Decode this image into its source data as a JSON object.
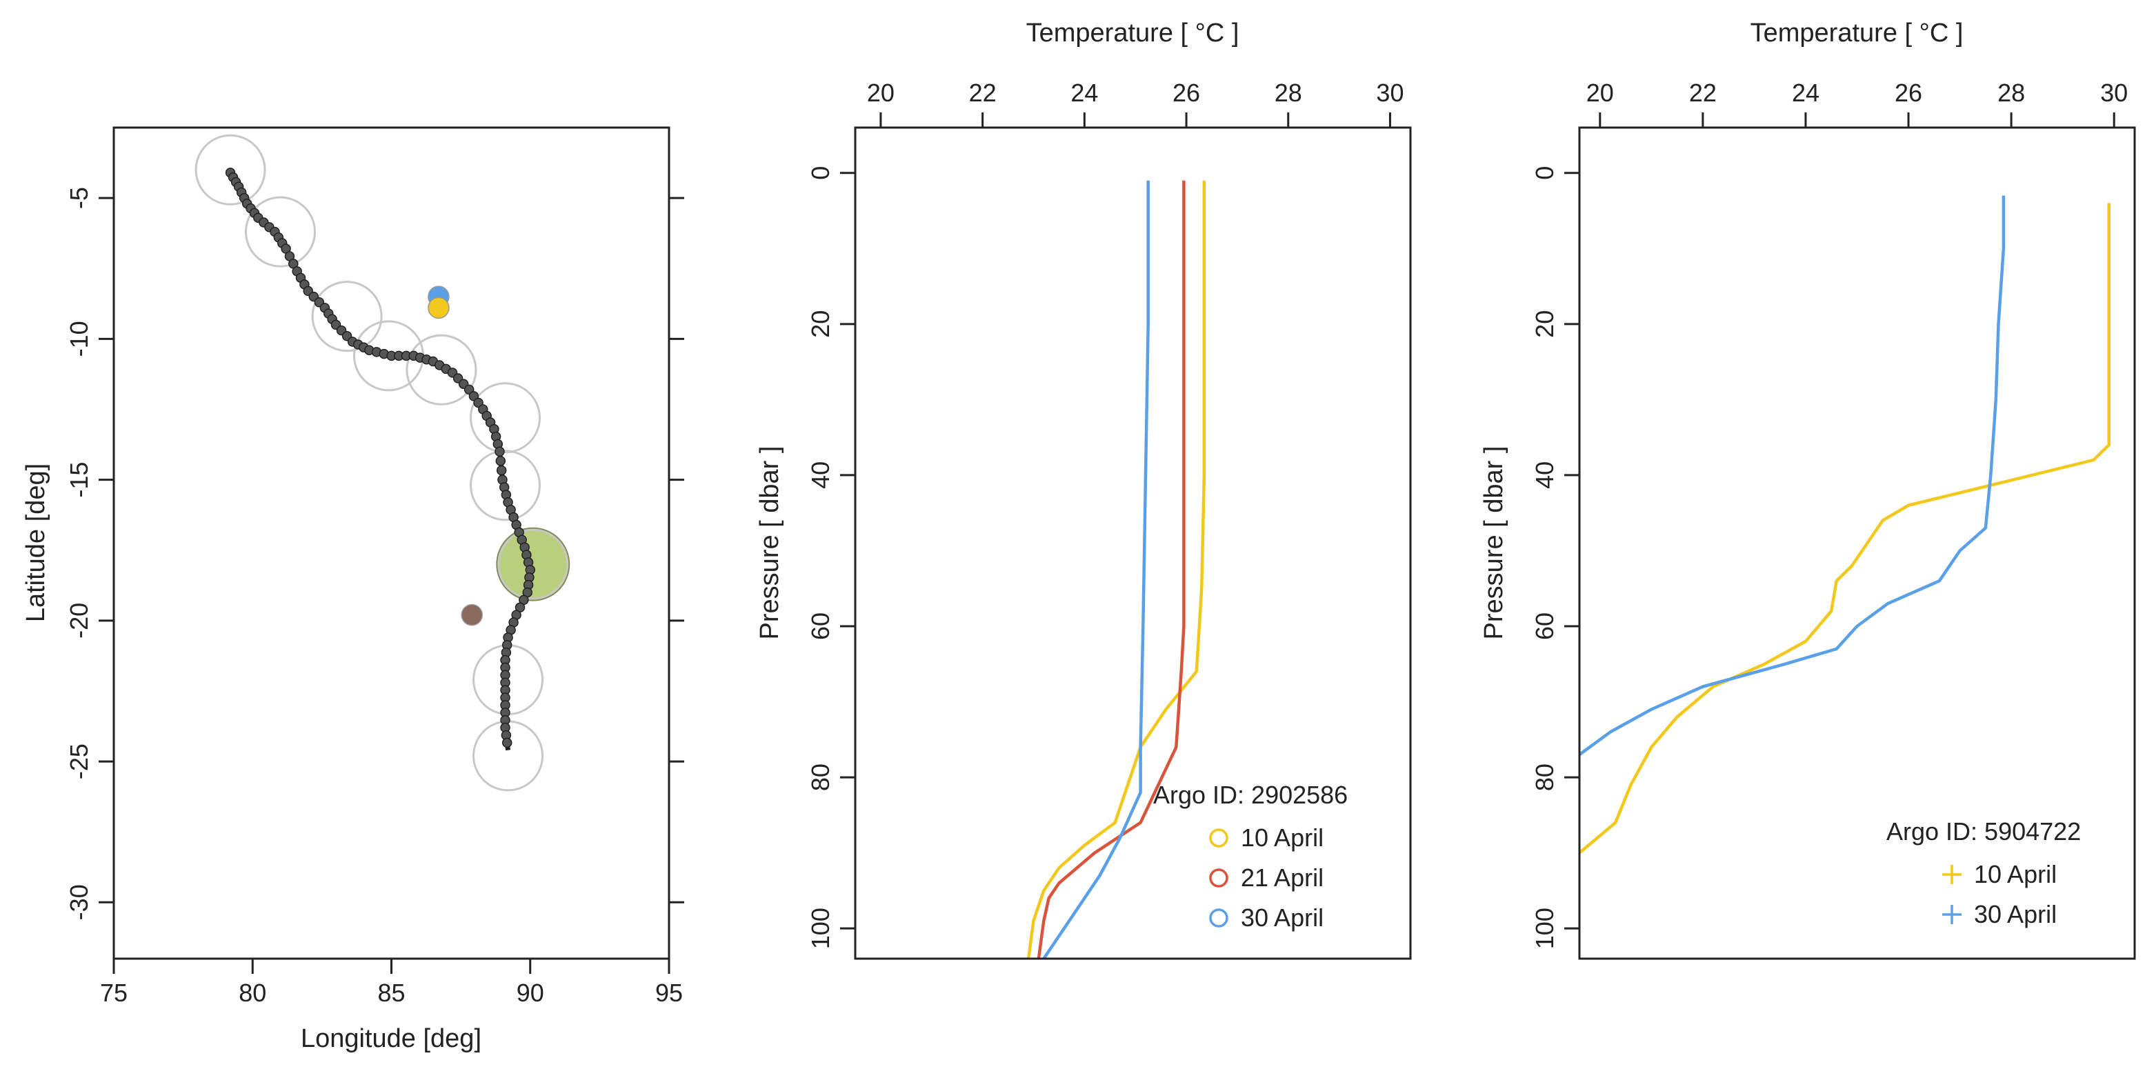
{
  "colors": {
    "yellow": "#f2c81c",
    "red": "#d9543a",
    "blue": "#5aa0e8",
    "track_line": "#222222",
    "track_marker": "#555555",
    "circle_outline": "#c8c8c8",
    "highlight_fill": "#b9cf7d",
    "brown_marker": "#8b6a5e"
  },
  "chart_data": [
    {
      "type": "scatter",
      "xlabel": "Longitude [deg]",
      "ylabel": "Latitude [deg]",
      "xlim": [
        75,
        95
      ],
      "ylim": [
        -32,
        -2.5
      ],
      "xticks": [
        75,
        80,
        85,
        90,
        95
      ],
      "yticks": [
        -5,
        -10,
        -15,
        -20,
        -25,
        -30
      ],
      "grid": false,
      "track": [
        [
          79.2,
          -4.1
        ],
        [
          79.5,
          -4.6
        ],
        [
          79.8,
          -5.2
        ],
        [
          80.2,
          -5.7
        ],
        [
          80.8,
          -6.2
        ],
        [
          81.2,
          -6.8
        ],
        [
          81.6,
          -7.6
        ],
        [
          82.0,
          -8.3
        ],
        [
          82.6,
          -8.9
        ],
        [
          83.0,
          -9.5
        ],
        [
          83.6,
          -10.1
        ],
        [
          84.2,
          -10.4
        ],
        [
          85.0,
          -10.6
        ],
        [
          85.8,
          -10.6
        ],
        [
          86.5,
          -10.8
        ],
        [
          87.2,
          -11.2
        ],
        [
          87.8,
          -11.8
        ],
        [
          88.3,
          -12.5
        ],
        [
          88.7,
          -13.2
        ],
        [
          88.9,
          -14.0
        ],
        [
          89.0,
          -15.0
        ],
        [
          89.2,
          -15.8
        ],
        [
          89.5,
          -16.6
        ],
        [
          89.8,
          -17.4
        ],
        [
          90.0,
          -18.2
        ],
        [
          89.9,
          -19.0
        ],
        [
          89.5,
          -19.8
        ],
        [
          89.2,
          -20.6
        ],
        [
          89.1,
          -21.4
        ],
        [
          89.1,
          -22.2
        ],
        [
          89.1,
          -23.0
        ],
        [
          89.1,
          -23.8
        ],
        [
          89.2,
          -24.6
        ]
      ],
      "circles": [
        [
          79.2,
          -4.0
        ],
        [
          81.0,
          -6.2
        ],
        [
          83.4,
          -9.2
        ],
        [
          84.9,
          -10.6
        ],
        [
          86.8,
          -11.1
        ],
        [
          89.1,
          -12.8
        ],
        [
          89.1,
          -15.2
        ],
        [
          90.1,
          -18.0
        ],
        [
          89.2,
          -22.1
        ],
        [
          89.2,
          -24.8
        ]
      ],
      "highlight": [
        90.1,
        -18.0
      ],
      "markers": [
        {
          "x": 86.7,
          "y": -8.5,
          "color": "blue"
        },
        {
          "x": 86.7,
          "y": -8.9,
          "color": "yellow"
        },
        {
          "x": 87.9,
          "y": -19.8,
          "color": "brown"
        }
      ]
    },
    {
      "type": "line",
      "xlabel": "Temperature [ °C ]",
      "ylabel": "Pressure [ dbar ]",
      "xlim": [
        19.5,
        30.4
      ],
      "ylim": [
        104,
        -6
      ],
      "xticks": [
        20,
        22,
        24,
        26,
        28,
        30
      ],
      "yticks": [
        0,
        20,
        40,
        60,
        80,
        100
      ],
      "legend_position": "bottom-right",
      "legend_title": "Argo ID: 2902586",
      "legend_marker": "circle",
      "series": [
        {
          "name": "10 April",
          "color": "yellow",
          "points": [
            [
              26.35,
              1
            ],
            [
              26.35,
              20
            ],
            [
              26.35,
              40
            ],
            [
              26.3,
              55
            ],
            [
              26.2,
              66
            ],
            [
              25.6,
              71
            ],
            [
              25.1,
              76
            ],
            [
              24.9,
              80
            ],
            [
              24.6,
              86
            ],
            [
              24.0,
              89
            ],
            [
              23.5,
              92
            ],
            [
              23.2,
              95
            ],
            [
              23.0,
              99
            ],
            [
              22.9,
              104
            ]
          ]
        },
        {
          "name": "21 April",
          "color": "red",
          "points": [
            [
              25.95,
              1
            ],
            [
              25.95,
              20
            ],
            [
              25.95,
              40
            ],
            [
              25.95,
              60
            ],
            [
              25.9,
              66
            ],
            [
              25.8,
              76
            ],
            [
              25.1,
              86
            ],
            [
              24.2,
              90
            ],
            [
              23.5,
              94
            ],
            [
              23.3,
              96
            ],
            [
              23.2,
              99
            ],
            [
              23.1,
              104
            ]
          ]
        },
        {
          "name": "30 April",
          "color": "blue",
          "points": [
            [
              25.25,
              1
            ],
            [
              25.25,
              20
            ],
            [
              25.2,
              40
            ],
            [
              25.15,
              60
            ],
            [
              25.1,
              76
            ],
            [
              25.1,
              82
            ],
            [
              24.7,
              88
            ],
            [
              24.3,
              93
            ],
            [
              23.8,
              98
            ],
            [
              23.4,
              102
            ],
            [
              23.2,
              104
            ]
          ]
        }
      ]
    },
    {
      "type": "line",
      "xlabel": "Temperature [ °C ]",
      "ylabel": "Pressure [ dbar ]",
      "xlim": [
        19.6,
        30.4
      ],
      "ylim": [
        104,
        -6
      ],
      "xticks": [
        20,
        22,
        24,
        26,
        28,
        30
      ],
      "yticks": [
        0,
        20,
        40,
        60,
        80,
        100
      ],
      "legend_position": "bottom-right",
      "legend_title": "Argo ID: 5904722",
      "legend_marker": "cross",
      "series": [
        {
          "name": "10 April",
          "color": "yellow",
          "points": [
            [
              29.9,
              4
            ],
            [
              29.9,
              20
            ],
            [
              29.9,
              36
            ],
            [
              29.6,
              38
            ],
            [
              27.8,
              41
            ],
            [
              26.0,
              44
            ],
            [
              25.5,
              46
            ],
            [
              25.2,
              49
            ],
            [
              24.9,
              52
            ],
            [
              24.6,
              54
            ],
            [
              24.5,
              58
            ],
            [
              24.0,
              62
            ],
            [
              23.2,
              65
            ],
            [
              22.2,
              68
            ],
            [
              21.5,
              72
            ],
            [
              21.0,
              76
            ],
            [
              20.6,
              81
            ],
            [
              20.3,
              86
            ],
            [
              19.6,
              90
            ]
          ]
        },
        {
          "name": "30 April",
          "color": "blue",
          "points": [
            [
              27.85,
              3
            ],
            [
              27.85,
              10
            ],
            [
              27.75,
              20
            ],
            [
              27.7,
              30
            ],
            [
              27.6,
              40
            ],
            [
              27.5,
              47
            ],
            [
              27.0,
              50
            ],
            [
              26.6,
              54
            ],
            [
              25.6,
              57
            ],
            [
              25.0,
              60
            ],
            [
              24.6,
              63
            ],
            [
              23.6,
              65
            ],
            [
              22.0,
              68
            ],
            [
              21.0,
              71
            ],
            [
              20.2,
              74
            ],
            [
              19.6,
              77
            ]
          ]
        }
      ]
    }
  ]
}
